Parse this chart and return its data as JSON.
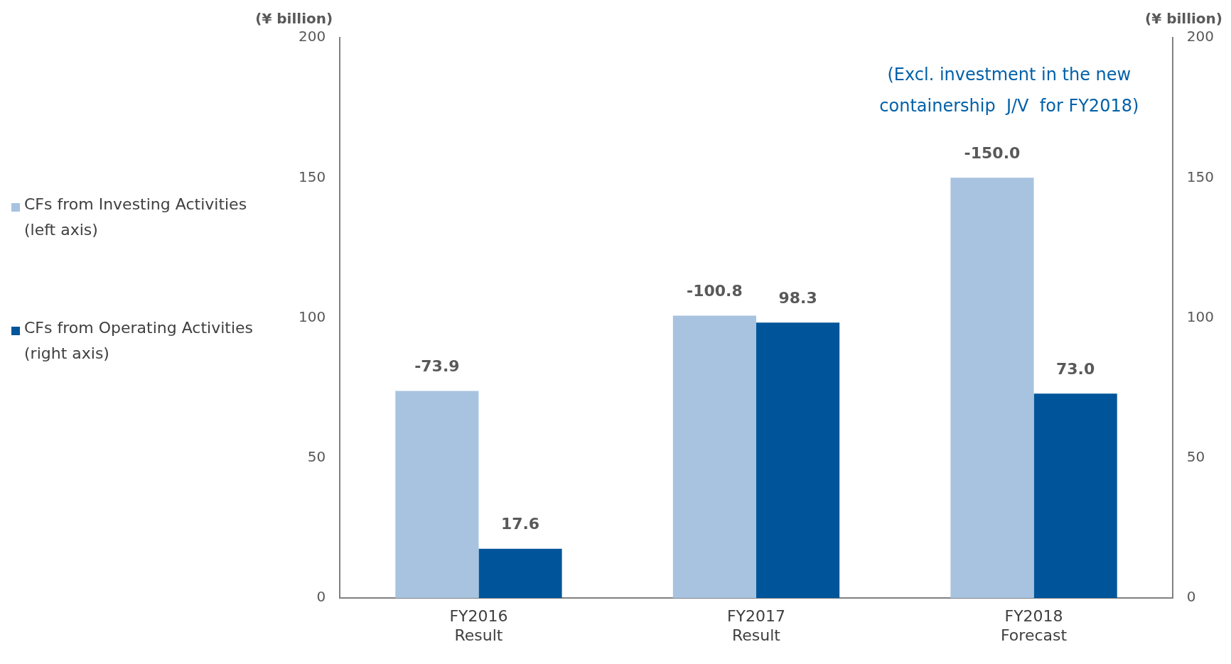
{
  "chart_data": {
    "type": "bar",
    "categories": [
      "FY2016\nResult",
      "FY2017\nResult",
      "FY2018\nForecast"
    ],
    "series": [
      {
        "name": "CFs from Investing Activities\n(left axis)",
        "color": "#a7c3e0",
        "values": [
          -73.9,
          -100.8,
          -150.0
        ],
        "value_labels": [
          "-73.9",
          "-100.8",
          "-150.0"
        ]
      },
      {
        "name": "CFs from Operating Activities\n(right axis)",
        "color": "#00559a",
        "axis": "y2",
        "values": [
          17.6,
          98.3,
          73.0
        ],
        "value_labels": [
          "17.6",
          "98.3",
          "73.0"
        ]
      }
    ],
    "ylabel": "(¥ billion)",
    "y2label": "(¥ billion)",
    "ylim": [
      0,
      -200
    ],
    "yticks": [
      0,
      {
        "value": -50,
        "label": "50"
      },
      {
        "value": -100,
        "label": "100"
      },
      {
        "value": -150,
        "label": "150"
      },
      {
        "value": -200,
        "label": "200"
      }
    ],
    "y2lim": [
      0,
      200
    ],
    "y2ticks": [
      0,
      50,
      100,
      150,
      200
    ],
    "annotations": [
      "(Excl. investment in the new\ncontainership  J/V  for FY2018)"
    ],
    "grid": false,
    "legend": "left"
  }
}
